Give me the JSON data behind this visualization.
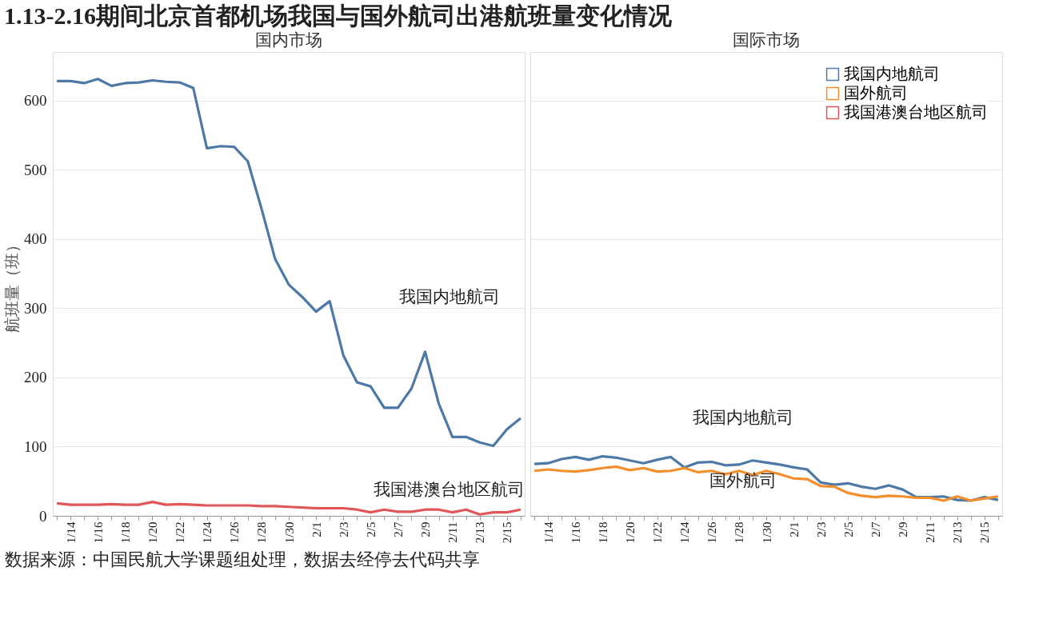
{
  "chart_data": [
    {
      "type": "other",
      "title": "1.13-2.16期间北京首都机场我国与国外航司出港航班量变化情况",
      "annotations": [
        "数据来源：中国民航大学课题组处理，数据去经停去代码共享"
      ]
    },
    {
      "type": "line",
      "title": "国内市场",
      "ylabel": "航班量（班）",
      "categories": [
        null,
        "1/14",
        null,
        "1/16",
        null,
        "1/18",
        null,
        "1/20",
        null,
        "1/22",
        null,
        "1/24",
        null,
        "1/26",
        null,
        "1/28",
        null,
        "1/30",
        null,
        "2/1",
        null,
        "2/3",
        null,
        "2/5",
        null,
        "2/7",
        null,
        "2/9",
        null,
        "2/11",
        null,
        "2/13",
        null,
        "2/15",
        null
      ],
      "ylim": [
        0,
        670
      ],
      "yticks": [
        0,
        100,
        200,
        300,
        400,
        500,
        600
      ],
      "grid": "y",
      "series": [
        {
          "color": "#4e79a7",
          "values": [
            628,
            628,
            625,
            631,
            621,
            625,
            626,
            629,
            627,
            626,
            618,
            531,
            534,
            533,
            512,
            444,
            371,
            334,
            316,
            295,
            310,
            232,
            193,
            187,
            156,
            156,
            184,
            237,
            162,
            114,
            114,
            106,
            101,
            125,
            141
          ]
        },
        {
          "color": "#e15759",
          "values": [
            18,
            16,
            16,
            16,
            17,
            16,
            16,
            20,
            16,
            17,
            16,
            15,
            15,
            15,
            15,
            14,
            14,
            13,
            12,
            11,
            11,
            11,
            9,
            5,
            9,
            6,
            6,
            9,
            9,
            5,
            9,
            2,
            5,
            5,
            9
          ]
        }
      ],
      "annotations": [
        "我国内地航司",
        "我国港澳台地区航司"
      ]
    },
    {
      "type": "line",
      "title": "国际市场",
      "categories": [
        null,
        "1/14",
        null,
        "1/16",
        null,
        "1/18",
        null,
        "1/20",
        null,
        "1/22",
        null,
        "1/24",
        null,
        "1/26",
        null,
        "1/28",
        null,
        "1/30",
        null,
        "2/1",
        null,
        "2/3",
        null,
        "2/5",
        null,
        "2/7",
        null,
        "2/9",
        null,
        "2/11",
        null,
        "2/13",
        null,
        "2/15",
        null
      ],
      "ylim": [
        0,
        670
      ],
      "yticks": [
        0,
        100,
        200,
        300,
        400,
        500,
        600
      ],
      "grid": "y",
      "tick_labels": "x",
      "legend": "top right",
      "series": [
        {
          "name": "我国内地航司",
          "color": "#4e79a7",
          "values": [
            75,
            76,
            82,
            85,
            81,
            86,
            84,
            80,
            76,
            81,
            85,
            70,
            77,
            78,
            73,
            74,
            80,
            77,
            74,
            70,
            67,
            48,
            45,
            47,
            42,
            39,
            44,
            38,
            27,
            27,
            28,
            23,
            22,
            27,
            23
          ]
        },
        {
          "name": "国外航司",
          "color": "#f28e2b",
          "values": [
            65,
            67,
            65,
            64,
            66,
            69,
            71,
            66,
            69,
            64,
            65,
            69,
            63,
            65,
            60,
            65,
            59,
            65,
            60,
            54,
            53,
            43,
            42,
            33,
            29,
            27,
            29,
            28,
            26,
            26,
            22,
            28,
            22,
            25,
            28
          ]
        },
        {
          "name": "我国港澳台地区航司",
          "color": "#e15759",
          "values": [
            null,
            null,
            null,
            null,
            null,
            null,
            null,
            null,
            null,
            null,
            null,
            null,
            null,
            null,
            null,
            null,
            null,
            null,
            null,
            null,
            null,
            null,
            null,
            null,
            null,
            null,
            null,
            null,
            null,
            null,
            null,
            null,
            null,
            null,
            null
          ]
        }
      ],
      "annotations": [
        "我国内地航司",
        "国外航司"
      ]
    }
  ]
}
